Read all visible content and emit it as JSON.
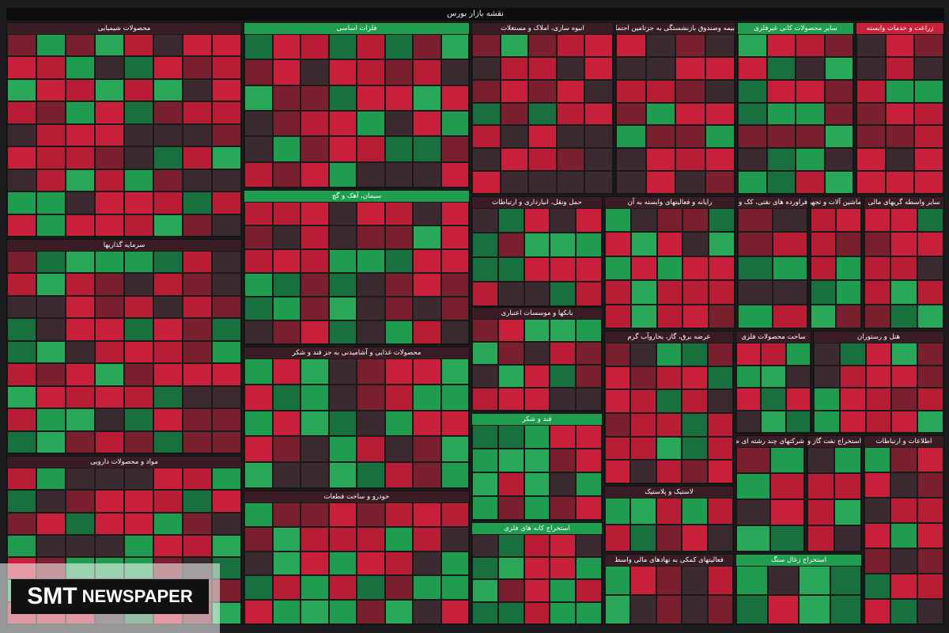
{
  "title": "نقشه بازار بورس",
  "sectors": [
    {
      "name": "محصولات شیمیایی"
    },
    {
      "name": "سرمایه گذاریها"
    },
    {
      "name": "مواد و محصولات دارویی"
    },
    {
      "name": "فلزات اساسی"
    },
    {
      "name": "سیمان، آهک و گچ"
    },
    {
      "name": "محصولات غذایی و آشامیدنی به جز قند و شکر"
    },
    {
      "name": "خودرو و ساخت قطعات"
    },
    {
      "name": "انبوه سازی، املاک و مستغلات"
    },
    {
      "name": "حمل ونقل، انبارداری و ارتباطات"
    },
    {
      "name": "بانکها و موسسات اعتباری"
    },
    {
      "name": "قند و شکر"
    },
    {
      "name": "استخراج کانه های فلزی"
    },
    {
      "name": "بیمه وصندوق بازنشستگی به جزتامین اجتماعی"
    },
    {
      "name": "سایر محصولات کانی غیرفلزی"
    },
    {
      "name": "زراعت و خدمات وابسته"
    },
    {
      "name": "رایانه و فعالیتهای وابسته به آن"
    },
    {
      "name": "فراورده های نفتی، کک و سوخت هسته ای"
    },
    {
      "name": "ماشین آلات و تجهیزات"
    },
    {
      "name": "سایر واسطه گریهای مالی"
    },
    {
      "name": "عرضه برق، گاز، بخاروآب گرم"
    },
    {
      "name": "ساخت محصولات فلزی"
    },
    {
      "name": "هتل و رستوران"
    },
    {
      "name": "لاستیک و پلاستیک"
    },
    {
      "name": "فعالیتهای کمکی به نهادهای مالی واسط"
    },
    {
      "name": "شرکتهای چند رشته ای صنعتی"
    },
    {
      "name": "استخراج نفت گاز و خدمات جنبی"
    },
    {
      "name": "استخراج زغال سنگ"
    },
    {
      "name": "اطلاعات و ارتباطات"
    }
  ],
  "watermark": {
    "brand": "SMT",
    "word": "NEWSPAPER"
  }
}
